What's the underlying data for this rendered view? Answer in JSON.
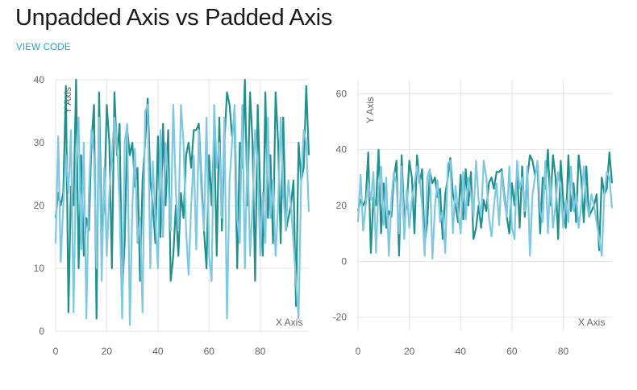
{
  "page": {
    "title": "Unpadded Axis vs Padded Axis",
    "view_code_label": "VIEW CODE"
  },
  "colors": {
    "series_a": "#21918c",
    "series_b": "#7ec8e3",
    "grid": "#e6e6e6",
    "text": "#666666",
    "link": "#1fa2d4"
  },
  "chart_data": [
    {
      "type": "line",
      "xlabel": "X Axis",
      "ylabel": "Y Axis",
      "xlim": [
        0,
        99
      ],
      "ylim": [
        0,
        40
      ],
      "x_ticks": [
        0,
        20,
        40,
        60,
        80
      ],
      "y_ticks": [
        0,
        10,
        20,
        30,
        40
      ],
      "grid": true,
      "legend": "none",
      "series": [
        {
          "values": [
            18,
            22,
            20,
            22,
            39,
            3,
            23,
            20,
            40,
            10,
            28,
            12,
            18,
            16,
            30,
            36,
            2,
            38,
            16,
            20,
            36,
            30,
            10,
            38,
            28,
            33,
            6,
            14,
            32,
            28,
            30,
            23,
            26,
            8,
            24,
            30,
            37,
            24,
            20,
            14,
            31,
            15,
            33,
            20,
            32,
            8,
            12,
            20,
            12,
            22,
            18,
            28,
            30,
            26,
            32,
            32,
            33,
            24,
            16,
            10,
            28,
            20,
            32,
            12,
            34,
            16,
            30,
            38,
            36,
            31,
            34,
            10,
            30,
            26,
            40,
            20,
            38,
            30,
            8,
            36,
            22,
            12,
            38,
            18,
            28,
            14,
            38,
            30,
            14,
            34,
            16,
            18,
            20,
            24,
            4,
            30,
            24,
            26,
            39,
            28
          ]
        },
        {
          "values": [
            14,
            31,
            11,
            20,
            28,
            22,
            32,
            3,
            26,
            34,
            13,
            30,
            2,
            22,
            32,
            28,
            10,
            34,
            8,
            26,
            12,
            22,
            28,
            34,
            30,
            20,
            2,
            30,
            33,
            1,
            20,
            29,
            14,
            18,
            3,
            35,
            36,
            10,
            27,
            18,
            10,
            32,
            15,
            30,
            24,
            16,
            36,
            22,
            16,
            36,
            30,
            16,
            9,
            20,
            28,
            13,
            32,
            22,
            16,
            34,
            12,
            8,
            36,
            26,
            30,
            18,
            34,
            2,
            24,
            30,
            36,
            18,
            14,
            36,
            10,
            30,
            12,
            20,
            32,
            26,
            12,
            22,
            14,
            34,
            18,
            24,
            12,
            20,
            34,
            22,
            16,
            24,
            20,
            14,
            8,
            2,
            24,
            32,
            30,
            19
          ]
        }
      ]
    },
    {
      "type": "line",
      "xlabel": "X Axis",
      "ylabel": "Y Axis",
      "xlim": [
        0,
        99
      ],
      "ylim": [
        -25,
        65
      ],
      "x_ticks": [
        0,
        20,
        40,
        60,
        80
      ],
      "y_ticks": [
        -20,
        0,
        20,
        40,
        60
      ],
      "grid": true,
      "legend": "none",
      "series_from_chart": 0
    }
  ]
}
